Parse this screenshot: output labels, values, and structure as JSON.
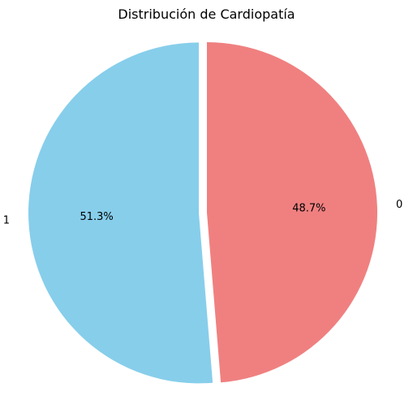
{
  "chart_data": {
    "type": "pie",
    "title": "Distribución de Cardiopatía",
    "slices": [
      {
        "label": "0",
        "value": 48.7,
        "pct_label": "48.7%",
        "color": "#f08080",
        "exploded": false
      },
      {
        "label": "1",
        "value": 51.3,
        "pct_label": "51.3%",
        "color": "#87ceeb",
        "exploded": true
      }
    ],
    "start_angle_deg": 90,
    "direction": "clockwise"
  }
}
